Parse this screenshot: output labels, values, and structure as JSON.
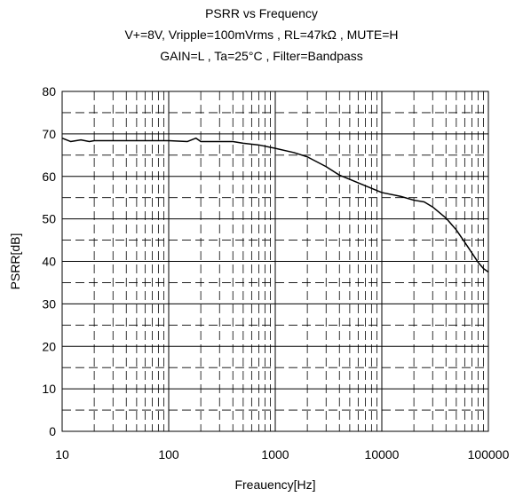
{
  "chart_data": {
    "type": "line",
    "title": "PSRR vs Frequency",
    "subtitle": [
      "V+=8V, Vripple=100mVrms , RL=47kΩ , MUTE=H",
      "GAIN=L , Ta=25°C , Filter=Bandpass"
    ],
    "xlabel": "Freauency[Hz]",
    "ylabel": "PSRR[dB]",
    "x_scale": "log",
    "xlim": [
      10,
      100000
    ],
    "ylim": [
      0,
      80
    ],
    "x_ticks": [
      "10",
      "100",
      "1000",
      "10000",
      "100000"
    ],
    "y_ticks": [
      "0",
      "10",
      "20",
      "30",
      "40",
      "50",
      "60",
      "70",
      "80"
    ],
    "grid": true,
    "line_color": "#000000",
    "series": [
      {
        "x": [
          10,
          12,
          15,
          18,
          20,
          30,
          50,
          80,
          100,
          150,
          180,
          200,
          250,
          300,
          400,
          500,
          700,
          1000,
          1500,
          2000,
          3000,
          4000,
          5000,
          7000,
          10000,
          15000,
          20000,
          25000,
          30000,
          40000,
          50000,
          60000,
          70000,
          80000,
          90000,
          100000
        ],
        "y": [
          69,
          68.2,
          68.6,
          68.2,
          68.4,
          68.4,
          68.4,
          68.4,
          68.4,
          68.2,
          69,
          68.2,
          68.2,
          68.2,
          68.2,
          67.8,
          67.4,
          66.6,
          65.6,
          64.6,
          62.3,
          60.3,
          59.3,
          57.8,
          56.2,
          55.3,
          54.4,
          54,
          52.8,
          50.2,
          47.4,
          44.5,
          42,
          39.8,
          38.3,
          37.5
        ]
      }
    ]
  }
}
